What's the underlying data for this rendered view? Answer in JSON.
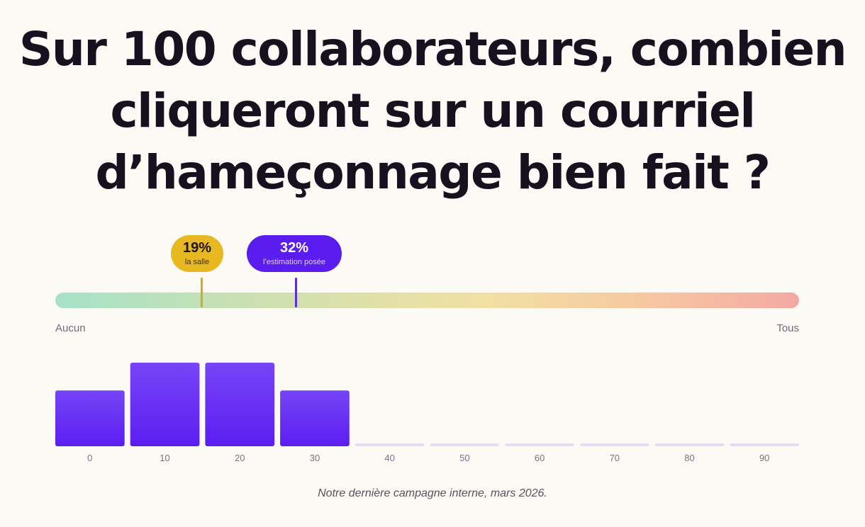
{
  "title_lines": [
    "Sur 100 collaborateurs, combien",
    "cliqueront sur un courriel",
    "d’hameçonnage bien fait ?"
  ],
  "markers": {
    "room": {
      "value": 19,
      "pct_label": "19%",
      "label": "la salle",
      "color": "#e8b823"
    },
    "estimate": {
      "value": 32,
      "pct_label": "32%",
      "label": "l’estimation posée",
      "color": "#5b1cf0"
    }
  },
  "scale": {
    "min_label": "Aucun",
    "max_label": "Tous",
    "min": 0,
    "max": 100
  },
  "chart_data": {
    "type": "bar",
    "categories": [
      "0",
      "10",
      "20",
      "30",
      "40",
      "50",
      "60",
      "70",
      "80",
      "90"
    ],
    "values": [
      2,
      3,
      3,
      2,
      0,
      0,
      0,
      0,
      0,
      0
    ],
    "ylim": [
      0,
      3
    ],
    "bar_color": "#6a30f5",
    "empty_bar_color": "#e4dcf7"
  },
  "caption": "Notre dernière campagne interne, mars 2026."
}
